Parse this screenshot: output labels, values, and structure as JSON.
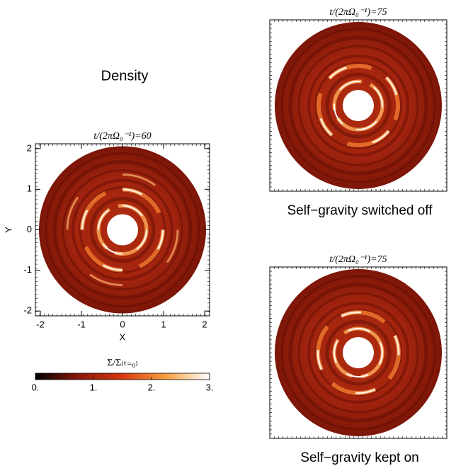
{
  "chart_data": [
    {
      "type": "image",
      "title": "t/(2πΩ₀⁻¹)=60",
      "annotation": "Density",
      "xlabel": "X",
      "ylabel": "Y",
      "xlim": [
        -2.12,
        2.12
      ],
      "ylim": [
        -2.12,
        2.12
      ],
      "xticks": [
        -2,
        -1,
        0,
        1,
        2
      ],
      "yticks": [
        -2,
        -1,
        0,
        1,
        2
      ]
    },
    {
      "type": "image",
      "title": "t/(2πΩ₀⁻¹)=75",
      "caption": "Self−gravity switched off"
    },
    {
      "type": "image",
      "title": "t/(2πΩ₀⁻¹)=75",
      "caption": "Self−gravity kept on"
    },
    {
      "type": "colorbar",
      "title": "Σ/Σ₍ₜ₌₀₎",
      "xlim": [
        0,
        3
      ],
      "xticks": [
        {
          "value": 0,
          "label": "0."
        },
        {
          "value": 1,
          "label": "1."
        },
        {
          "value": 2,
          "label": "2."
        },
        {
          "value": 3,
          "label": "3."
        }
      ],
      "colors": [
        "#000000",
        "#8b1a0a",
        "#d8380e",
        "#f5a040",
        "#ffffff"
      ]
    }
  ]
}
